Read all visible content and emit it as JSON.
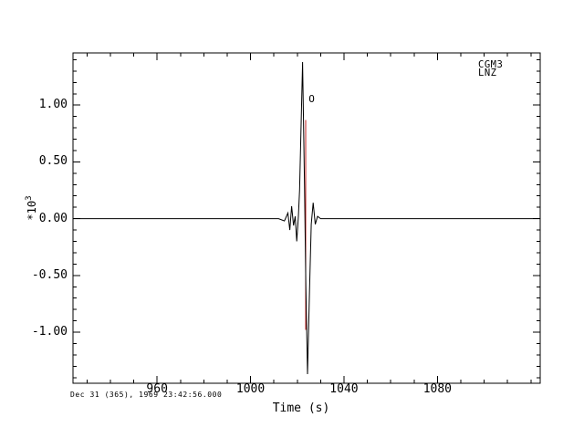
{
  "figure": {
    "background": "#ffffff",
    "frame_color": "#000000",
    "trace_color": "#000000",
    "origin_marker_color": "#c22222"
  },
  "labels": {
    "station": "CGM3",
    "channel": "LNZ",
    "xlabel": "Time (s)",
    "ylabel_multiplier": "*10",
    "ylabel_exponent": "3",
    "timestamp": "Dec 31 (365), 1969 23:42:56.000",
    "origin_marker": "O"
  },
  "chart_data": {
    "type": "line",
    "title": "",
    "xlabel": "Time (s)",
    "ylabel": "*10^3",
    "grid": false,
    "legend": "none",
    "xlim": [
      924,
      1124
    ],
    "ylim": [
      -1.45,
      1.46
    ],
    "x_ticks": {
      "major": [
        960,
        1000,
        1040,
        1080
      ],
      "major_labels": [
        "960",
        "1000",
        "1040",
        "1080"
      ],
      "minor_from": 930,
      "minor_to": 1120,
      "minor_step": 10
    },
    "y_ticks": {
      "major": [
        -1.0,
        -0.5,
        0.0,
        0.5,
        1.0
      ],
      "major_labels": [
        "-1.00",
        "-0.50",
        "0.00",
        "0.50",
        "1.00"
      ],
      "minor_from": -1.4,
      "minor_to": 1.4,
      "minor_step": 0.1
    },
    "series": [
      {
        "name": "CGM3 LNZ seismogram trace",
        "units": "amplitude x10^3",
        "points": [
          [
            924.0,
            0.0
          ],
          [
            1012.0,
            0.0
          ],
          [
            1014.5,
            -0.02
          ],
          [
            1016.0,
            0.05
          ],
          [
            1016.8,
            -0.1
          ],
          [
            1017.6,
            0.11
          ],
          [
            1018.4,
            -0.06
          ],
          [
            1019.1,
            0.02
          ],
          [
            1019.8,
            -0.2
          ],
          [
            1020.5,
            0.02
          ],
          [
            1021.0,
            0.25
          ],
          [
            1022.3,
            1.38
          ],
          [
            1023.1,
            0.3
          ],
          [
            1023.7,
            -0.6
          ],
          [
            1024.4,
            -1.37
          ],
          [
            1025.3,
            -0.6
          ],
          [
            1026.0,
            -0.05
          ],
          [
            1026.8,
            0.14
          ],
          [
            1027.7,
            -0.05
          ],
          [
            1028.7,
            0.02
          ],
          [
            1030.0,
            0.0
          ],
          [
            1124.0,
            0.0
          ]
        ]
      }
    ],
    "origin_marker": {
      "label": "O",
      "t": 1023.7,
      "y_top": 0.87,
      "y_bottom": -0.98,
      "label_y": 1.1
    }
  }
}
